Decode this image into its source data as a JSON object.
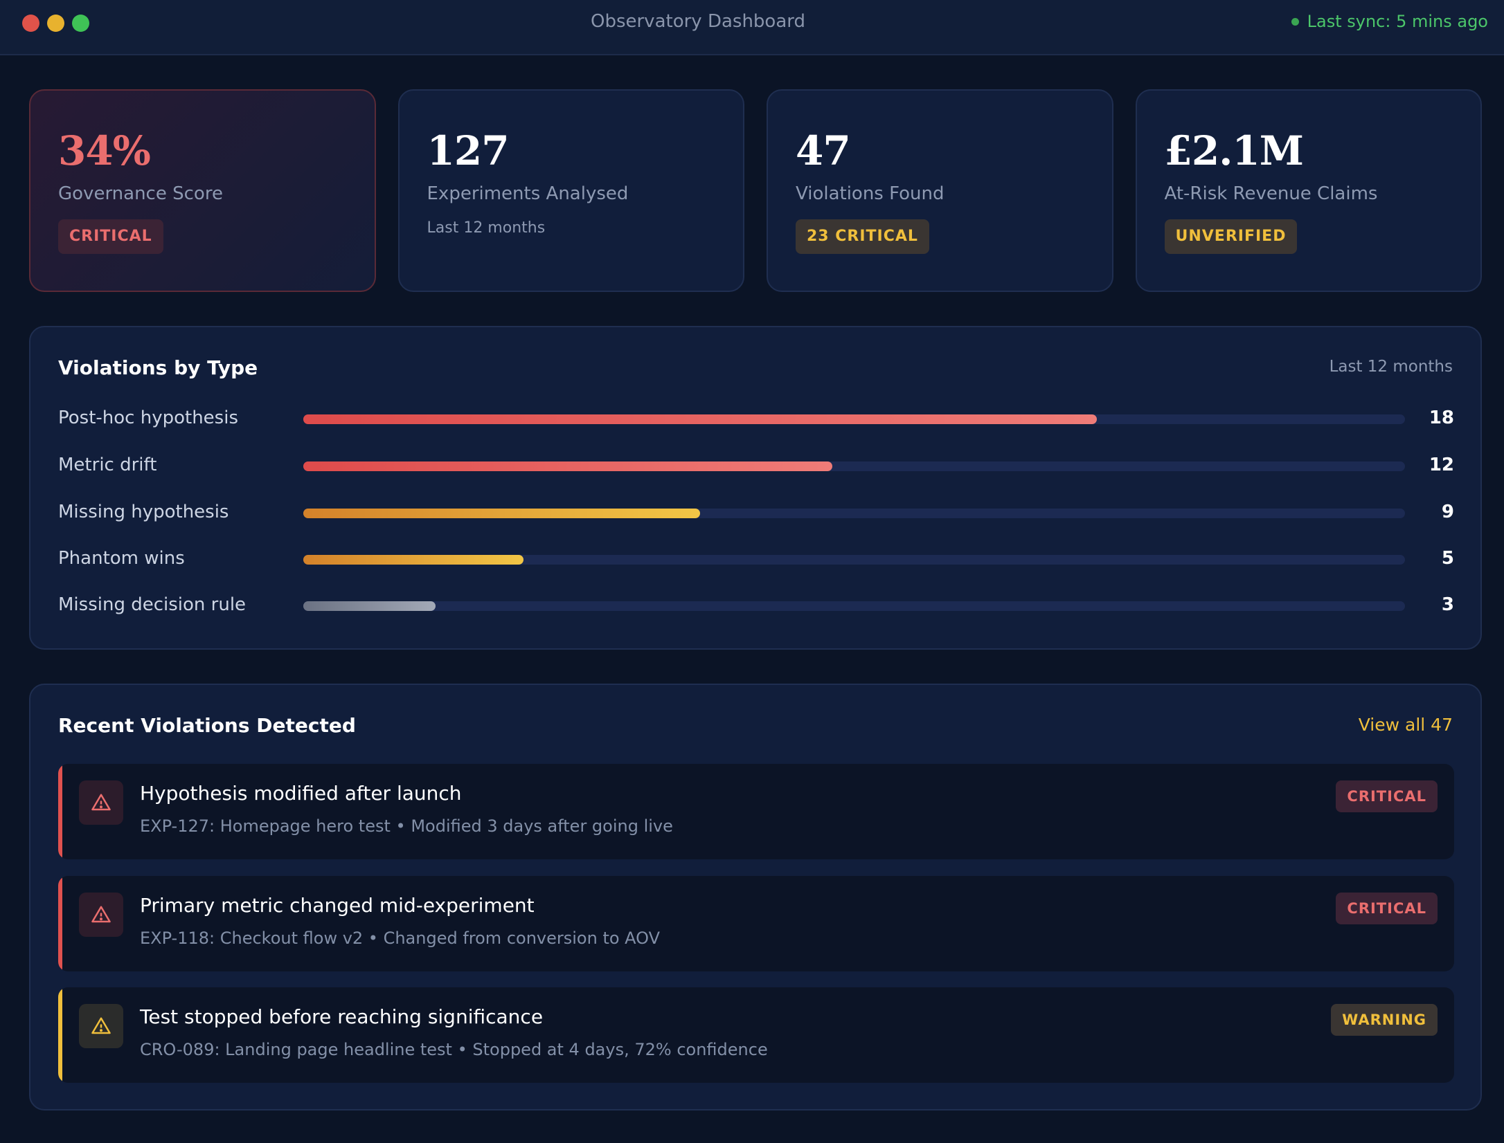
{
  "window": {
    "title": "Observatory Dashboard",
    "sync_status": "Last sync: 5 mins ago"
  },
  "stats": [
    {
      "value": "34%",
      "label": "Governance Score",
      "badge": "CRITICAL"
    },
    {
      "value": "127",
      "label": "Experiments Analysed",
      "sub": "Last 12 months"
    },
    {
      "value": "47",
      "label": "Violations Found",
      "badge": "23 CRITICAL"
    },
    {
      "value": "£2.1M",
      "label": "At-Risk Revenue Claims",
      "badge": "UNVERIFIED"
    }
  ],
  "violations_by_type": {
    "title": "Violations by Type",
    "period": "Last 12 months",
    "max": 25,
    "items": [
      {
        "label": "Post-hoc hypothesis",
        "value": 18,
        "display": "18",
        "color": "red"
      },
      {
        "label": "Metric drift",
        "value": 12,
        "display": "12",
        "color": "red"
      },
      {
        "label": "Missing hypothesis",
        "value": 9,
        "display": "9",
        "color": "amber"
      },
      {
        "label": "Phantom wins",
        "value": 5,
        "display": "5",
        "color": "amber"
      },
      {
        "label": "Missing decision rule",
        "value": 3,
        "display": "3",
        "color": "gray"
      }
    ]
  },
  "recent_violations": {
    "title": "Recent Violations Detected",
    "view_all": "View all 47",
    "items": [
      {
        "title": "Hypothesis modified after launch",
        "desc": "EXP-127: Homepage hero test • Modified 3 days after going live",
        "badge": "CRITICAL",
        "severity": "critical"
      },
      {
        "title": "Primary metric changed mid-experiment",
        "desc": "EXP-118: Checkout flow v2 • Changed from conversion to AOV",
        "badge": "CRITICAL",
        "severity": "critical"
      },
      {
        "title": "Test stopped before reaching significance",
        "desc": "CRO-089: Landing page headline test • Stopped at 4 days, 72% confidence",
        "badge": "WARNING",
        "severity": "warning"
      }
    ]
  },
  "colors": {
    "critical": "#ea6e6e",
    "warning": "#f0bf3c",
    "sync": "#4cc66a"
  }
}
